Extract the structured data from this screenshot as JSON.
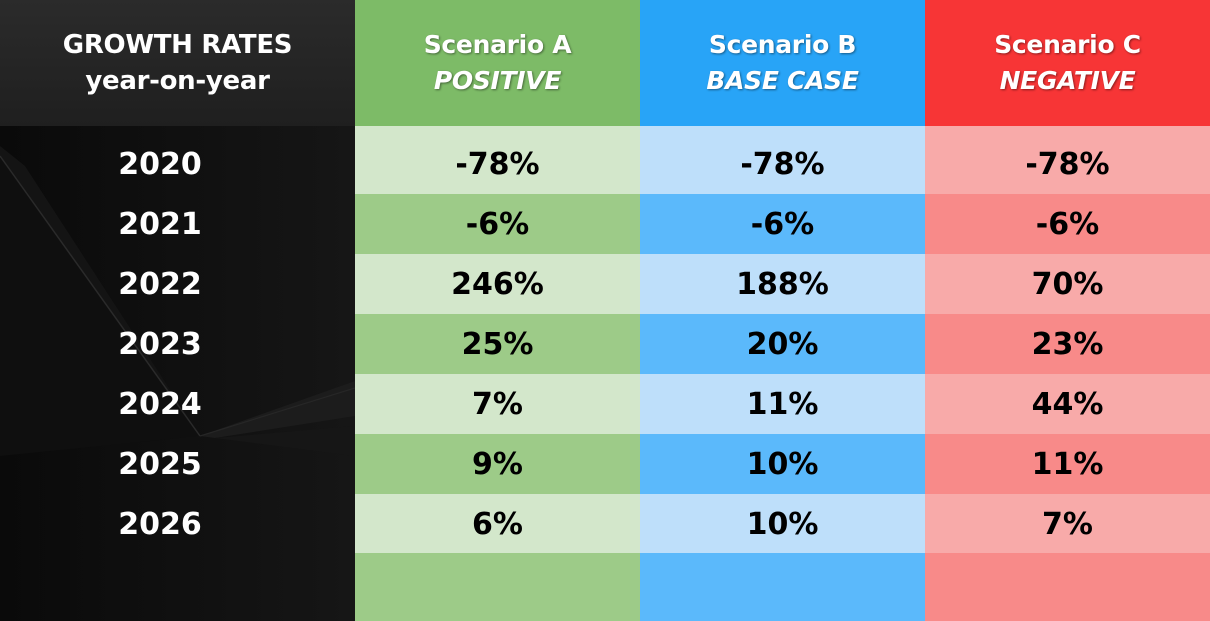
{
  "header": {
    "line1": "GROWTH RATES",
    "line2": "year-on-year"
  },
  "colors": {
    "a_header": "#7dbb67",
    "a_light": "#d3e7cb",
    "a_dark": "#9dcb88",
    "b_header": "#28a4f7",
    "b_light": "#bedffa",
    "b_dark": "#5bb9fb",
    "c_header": "#f73536",
    "c_light": "#f8aaa9",
    "c_dark": "#f88a89"
  },
  "chart_data": {
    "type": "table",
    "years": [
      "2020",
      "2021",
      "2022",
      "2023",
      "2024",
      "2025",
      "2026"
    ],
    "scenarios": [
      {
        "title": "Scenario A",
        "subtitle": "POSITIVE",
        "values": [
          "-78%",
          "-6%",
          "246%",
          "25%",
          "7%",
          "9%",
          "6%"
        ]
      },
      {
        "title": "Scenario B",
        "subtitle": "BASE CASE",
        "values": [
          "-78%",
          "-6%",
          "188%",
          "20%",
          "11%",
          "10%",
          "10%"
        ]
      },
      {
        "title": "Scenario C",
        "subtitle": "NEGATIVE",
        "values": [
          "-78%",
          "-6%",
          "70%",
          "23%",
          "44%",
          "11%",
          "7%"
        ]
      }
    ]
  }
}
